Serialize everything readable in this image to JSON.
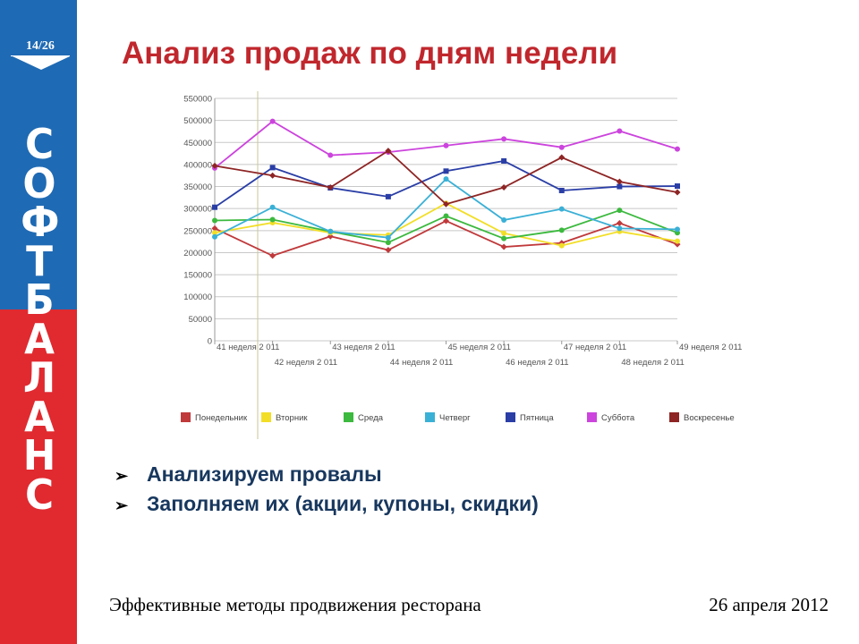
{
  "slide": {
    "page_number": "14/26",
    "brand_letters": [
      "С",
      "О",
      "Ф",
      "Т",
      "Б",
      "А",
      "Л",
      "А",
      "Н",
      "С"
    ],
    "title": "Анализ продаж по дням недели",
    "bullets": [
      "Анализируем провалы",
      "Заполняем их (акции, купоны, скидки)"
    ],
    "footer_left": "Эффективные методы продвижения ресторана",
    "footer_right": "26 апреля 2012"
  },
  "colors": {
    "sidebar_blue": "#1f6ab4",
    "sidebar_red": "#e02a30",
    "title": "#c0272d",
    "bullet_text": "#17375e"
  },
  "chart_data": {
    "type": "line",
    "x": [
      "41 неделя 2 011",
      "42 неделя 2 011",
      "43 неделя 2 011",
      "44 неделя 2 011",
      "45 неделя 2 011",
      "46 неделя 2 011",
      "47 неделя 2 011",
      "48 неделя 2 011",
      "49 неделя 2 011"
    ],
    "ylim": [
      0,
      550000
    ],
    "yticks": [
      0,
      50000,
      100000,
      150000,
      200000,
      250000,
      300000,
      350000,
      400000,
      450000,
      500000,
      550000
    ],
    "grid": "horizontal",
    "legend_position": "bottom",
    "series": [
      {
        "name": "Понедельник",
        "color": "#c0393b",
        "values": [
          255000,
          193000,
          237000,
          206000,
          272000,
          213000,
          222000,
          267000,
          219000
        ]
      },
      {
        "name": "Вторник",
        "color": "#f2de27",
        "values": [
          245000,
          268000,
          245000,
          240000,
          312000,
          244000,
          216000,
          248000,
          226000
        ]
      },
      {
        "name": "Среда",
        "color": "#3cb93e",
        "values": [
          273000,
          275000,
          248000,
          223000,
          283000,
          232000,
          251000,
          296000,
          245000
        ]
      },
      {
        "name": "Четверг",
        "color": "#3ab0d6",
        "values": [
          236000,
          303000,
          248000,
          234000,
          367000,
          274000,
          299000,
          255000,
          253000
        ]
      },
      {
        "name": "Пятница",
        "color": "#2a3ea6",
        "values": [
          303000,
          393000,
          347000,
          327000,
          385000,
          408000,
          341000,
          350000,
          351000
        ]
      },
      {
        "name": "Суббота",
        "color": "#cc44dd",
        "values": [
          392000,
          498000,
          421000,
          428000,
          443000,
          458000,
          439000,
          476000,
          435000
        ]
      },
      {
        "name": "Воскресенье",
        "color": "#8e2424",
        "values": [
          397000,
          375000,
          348000,
          431000,
          310000,
          348000,
          416000,
          361000,
          337000
        ]
      }
    ]
  }
}
